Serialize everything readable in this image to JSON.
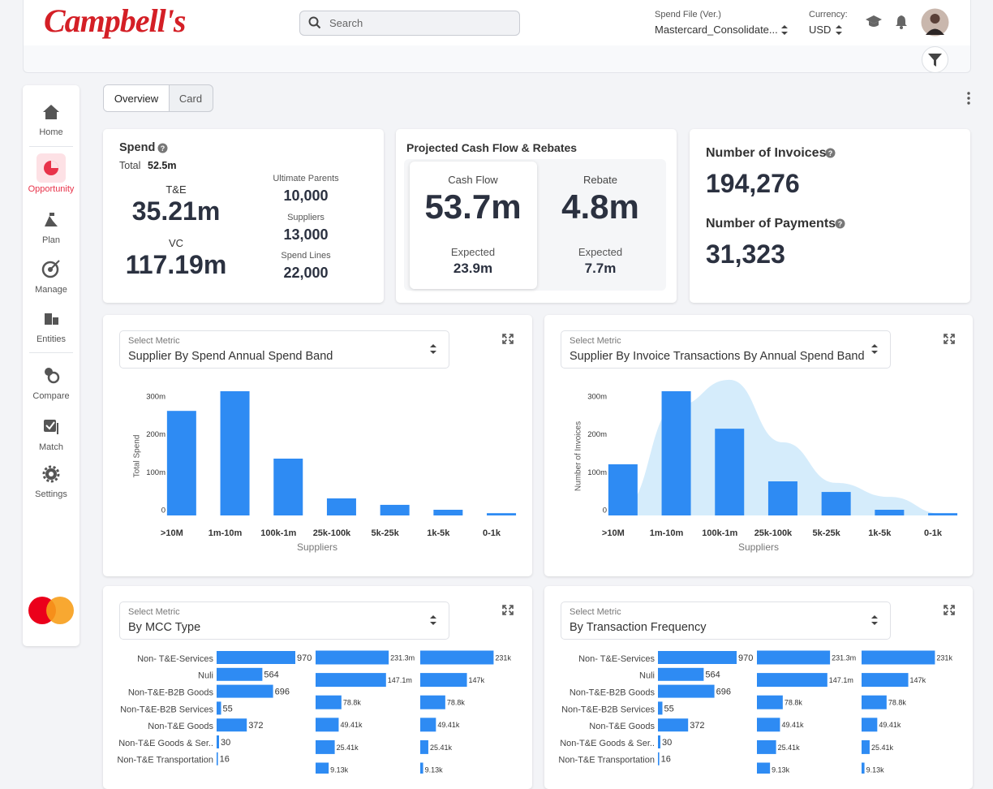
{
  "header": {
    "logo": "Campbell's",
    "search_placeholder": "Search",
    "spend_file_label": "Spend File (Ver.)",
    "spend_file_value": "Mastercard_Consolidate...",
    "currency_label": "Currency:",
    "currency_value": "USD"
  },
  "sidebar": {
    "items": [
      "Home",
      "Opportunity",
      "Plan",
      "Manage",
      "Entities",
      "Compare",
      "Match",
      "Settings"
    ]
  },
  "tabs": {
    "items": [
      "Overview",
      "Card"
    ]
  },
  "spend_card": {
    "title": "Spend",
    "total_label": "Total",
    "total_value": "52.5m",
    "te_label": "T&E",
    "te_value": "35.21m",
    "vc_label": "VC",
    "vc_value": "117.19m",
    "stats": [
      {
        "label": "Ultimate Parents",
        "value": "10,000"
      },
      {
        "label": "Suppliers",
        "value": "13,000"
      },
      {
        "label": "Spend Lines",
        "value": "22,000"
      }
    ]
  },
  "cashflow_card": {
    "title": "Projected Cash Flow & Rebates",
    "cells": [
      {
        "label": "Cash Flow",
        "value": "53.7m",
        "sub_label": "Expected",
        "sub_value": "23.9m"
      },
      {
        "label": "Rebate",
        "value": "4.8m",
        "sub_label": "Expected",
        "sub_value": "7.7m"
      }
    ]
  },
  "invoices_card": {
    "items": [
      {
        "label": "Number of Invoices",
        "value": "194,276"
      },
      {
        "label": "Number of Payments",
        "value": "31,323"
      }
    ]
  },
  "charts": [
    {
      "select_label": "Select Metric",
      "metric": "Supplier By Spend Annual Spend Band",
      "chart_data": {
        "type": "bar",
        "categories": [
          ">10M",
          "1m-10m",
          "100k-1m",
          "25k-100k",
          "5k-25k",
          "1k-5k",
          "0-1k"
        ],
        "series": [
          {
            "color": "#2e8bf3",
            "values": [
              276,
              328,
              150,
              45,
              28,
              15,
              6
            ]
          }
        ],
        "ylim": [
          0,
          375
        ],
        "yticks": [
          0,
          {
            "value": 100,
            "label": "100m"
          },
          {
            "value": 200,
            "label": "200m"
          },
          {
            "value": 300,
            "label": "300m"
          }
        ],
        "xlabel": "Suppliers",
        "ylabel": "Total Spend"
      }
    },
    {
      "select_label": "Select Metric",
      "metric": "Supplier By Invoice Transactions By Annual Spend Band",
      "chart_data": {
        "type": "bar",
        "categories": [
          ">10M",
          "1m-10m",
          "100k-1m",
          "25k-100k",
          "5k-25k",
          "1k-5k",
          "0-1k"
        ],
        "series": [
          {
            "kind": "area",
            "color": "#d5ecfb",
            "values": [
              20,
              289,
              358,
              193,
              86,
              49,
              4
            ]
          },
          {
            "color": "#2e8bf3",
            "values": [
              135,
              328,
              229,
              90,
              62,
              15,
              6
            ]
          }
        ],
        "ylim": [
          0,
          375
        ],
        "yticks": [
          0,
          {
            "value": 100,
            "label": "100m"
          },
          {
            "value": 200,
            "label": "200m"
          },
          {
            "value": 300,
            "label": "300m"
          }
        ],
        "xlabel": "Suppliers",
        "ylabel": "Number of Invoices"
      }
    },
    {
      "select_label": "Select Metric",
      "metric": "By MCC Type",
      "chart_data": {
        "type": "hbar",
        "categories": [
          "Non- T&E-Services",
          "Nuli",
          "Non-T&E-B2B Goods",
          "Non-T&E-B2B Services",
          "Non-T&E Goods",
          "Non-T&E Goods & Ser..",
          "Non-T&E Transportation"
        ],
        "panels": [
          {
            "color": "#2e8bf3",
            "values": [
              970,
              564,
              696,
              55,
              372,
              30,
              16
            ],
            "xlim": [
              0,
              1000
            ]
          },
          {
            "color": "#2e8bf3",
            "values": [
              231300000,
              147100000,
              78800,
              49410,
              25410,
              9130
            ],
            "value_labels": [
              "231.3m",
              "147.1m",
              "78.8k",
              "49.41k",
              "25.41k",
              "9.13k"
            ],
            "log": true,
            "xlim": [
              1000,
              300000000
            ]
          },
          {
            "color": "#2e8bf3",
            "values": [
              231000,
              147000,
              78800,
              49410,
              25410,
              9130
            ],
            "value_labels": [
              "231k",
              "147k",
              "78.8k",
              "49.41k",
              "25.41k",
              "9.13k"
            ],
            "xlim": [
              0,
              235000
            ]
          }
        ]
      }
    },
    {
      "select_label": "Select Metric",
      "metric": "By Transaction Frequency",
      "chart_data": {
        "type": "hbar",
        "categories": [
          "Non- T&E-Services",
          "Nuli",
          "Non-T&E-B2B Goods",
          "Non-T&E-B2B Services",
          "Non-T&E Goods",
          "Non-T&E Goods & Ser..",
          "Non-T&E Transportation"
        ],
        "panels": [
          {
            "color": "#2e8bf3",
            "values": [
              970,
              564,
              696,
              55,
              372,
              30,
              16
            ],
            "xlim": [
              0,
              1000
            ]
          },
          {
            "color": "#2e8bf3",
            "values": [
              231300000,
              147100000,
              78800,
              49410,
              25410,
              9130
            ],
            "value_labels": [
              "231.3m",
              "147.1m",
              "78.8k",
              "49.41k",
              "25.41k",
              "9.13k"
            ],
            "log": true,
            "xlim": [
              1000,
              300000000
            ]
          },
          {
            "color": "#2e8bf3",
            "values": [
              231000,
              147000,
              78800,
              49410,
              25410,
              9130
            ],
            "value_labels": [
              "231k",
              "147k",
              "78.8k",
              "49.41k",
              "25.41k",
              "9.13k"
            ],
            "xlim": [
              0,
              235000
            ]
          }
        ]
      }
    }
  ]
}
